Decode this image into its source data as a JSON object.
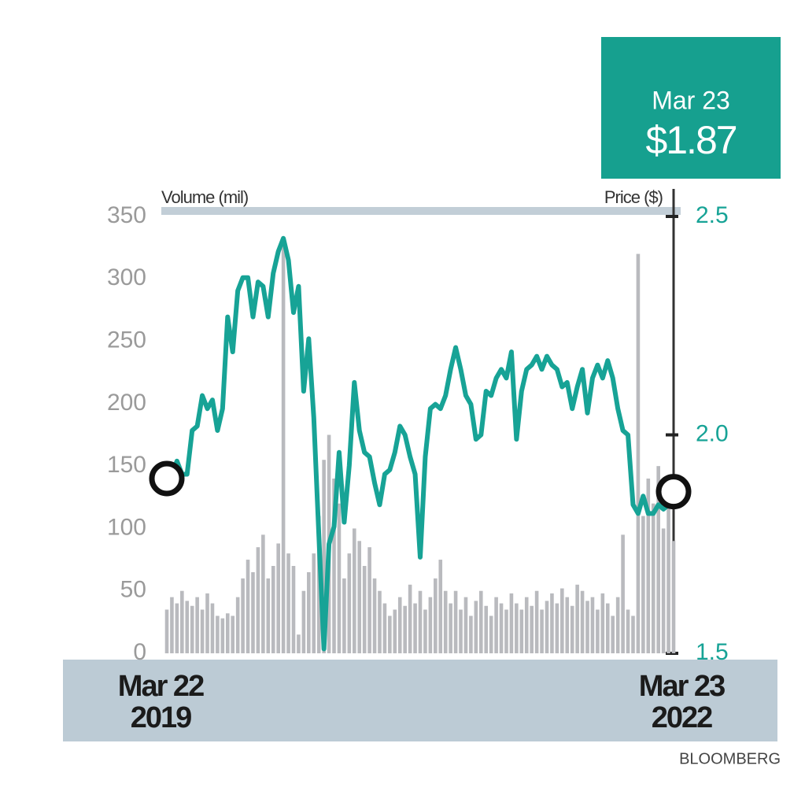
{
  "chart_data": {
    "type": "combo",
    "y_label": "Volume (mil)",
    "y2_label": "Price ($)",
    "annotations": [
      "Mar 23",
      "$1.87"
    ],
    "source": "BLOOMBERG",
    "categories": [
      "Mar 22\n2019",
      null,
      null,
      null,
      null,
      null,
      null,
      null,
      null,
      null,
      null,
      null,
      null,
      null,
      null,
      null,
      null,
      null,
      null,
      null,
      null,
      null,
      null,
      null,
      null,
      null,
      null,
      null,
      null,
      null,
      null,
      null,
      null,
      null,
      null,
      null,
      null,
      null,
      null,
      null,
      null,
      null,
      null,
      null,
      null,
      null,
      null,
      null,
      null,
      null,
      null,
      null,
      null,
      null,
      null,
      null,
      null,
      null,
      null,
      null,
      null,
      null,
      null,
      null,
      null,
      null,
      null,
      null,
      null,
      null,
      null,
      null,
      null,
      null,
      null,
      null,
      null,
      null,
      null,
      null,
      null,
      null,
      null,
      null,
      null,
      null,
      null,
      null,
      null,
      null,
      null,
      null,
      null,
      null,
      null,
      null,
      null,
      null,
      null,
      null,
      "Mar 23\n2022"
    ],
    "series": [
      {
        "name": "Volume",
        "type": "bar",
        "color": "#b9babe",
        "axis": "y",
        "values": [
          35,
          45,
          40,
          50,
          42,
          38,
          45,
          35,
          48,
          40,
          30,
          28,
          32,
          30,
          45,
          60,
          75,
          65,
          85,
          95,
          60,
          70,
          88,
          330,
          80,
          70,
          15,
          50,
          65,
          80,
          110,
          155,
          175,
          140,
          120,
          60,
          80,
          100,
          90,
          70,
          85,
          60,
          50,
          40,
          30,
          35,
          45,
          38,
          55,
          40,
          50,
          35,
          45,
          60,
          75,
          50,
          40,
          50,
          35,
          45,
          30,
          42,
          50,
          38,
          30,
          45,
          40,
          35,
          48,
          40,
          35,
          45,
          38,
          50,
          35,
          42,
          48,
          40,
          52,
          45,
          38,
          55,
          50,
          42,
          45,
          35,
          48,
          40,
          30,
          45,
          95,
          35,
          30,
          320,
          110,
          140,
          120,
          150,
          100,
          140,
          90
        ]
      },
      {
        "name": "Price",
        "type": "line",
        "color": "#17a396",
        "axis": "y2",
        "values": [
          1.9,
          1.91,
          1.94,
          1.91,
          1.91,
          2.01,
          2.02,
          2.09,
          2.06,
          2.08,
          2.01,
          2.06,
          2.27,
          2.19,
          2.33,
          2.36,
          2.36,
          2.27,
          2.35,
          2.34,
          2.27,
          2.37,
          2.42,
          2.45,
          2.4,
          2.28,
          2.34,
          2.1,
          2.22,
          2.04,
          1.77,
          1.51,
          1.75,
          1.79,
          1.96,
          1.8,
          1.93,
          2.12,
          2.01,
          1.96,
          1.95,
          1.89,
          1.84,
          1.91,
          1.92,
          1.96,
          2.02,
          2.0,
          1.95,
          1.91,
          1.72,
          1.95,
          2.06,
          2.07,
          2.06,
          2.09,
          2.15,
          2.2,
          2.15,
          2.09,
          2.07,
          1.99,
          2.0,
          2.1,
          2.09,
          2.13,
          2.15,
          2.13,
          2.19,
          1.99,
          2.1,
          2.15,
          2.16,
          2.18,
          2.15,
          2.18,
          2.16,
          2.15,
          2.11,
          2.12,
          2.06,
          2.11,
          2.15,
          2.05,
          2.13,
          2.16,
          2.13,
          2.17,
          2.13,
          2.06,
          2.01,
          2.0,
          1.84,
          1.82,
          1.86,
          1.82,
          1.82,
          1.84,
          1.83,
          1.84,
          1.87
        ]
      }
    ],
    "ylim": [
      0,
      350
    ],
    "yticks": [
      0,
      50,
      100,
      150,
      200,
      250,
      300,
      350
    ],
    "y2lim": [
      1.5,
      2.5
    ],
    "y2ticks": [
      {
        "value": 1.5,
        "label": "1.5"
      },
      {
        "value": 2.0,
        "label": "2.0"
      },
      {
        "value": 2.5,
        "label": "2.5"
      }
    ]
  }
}
